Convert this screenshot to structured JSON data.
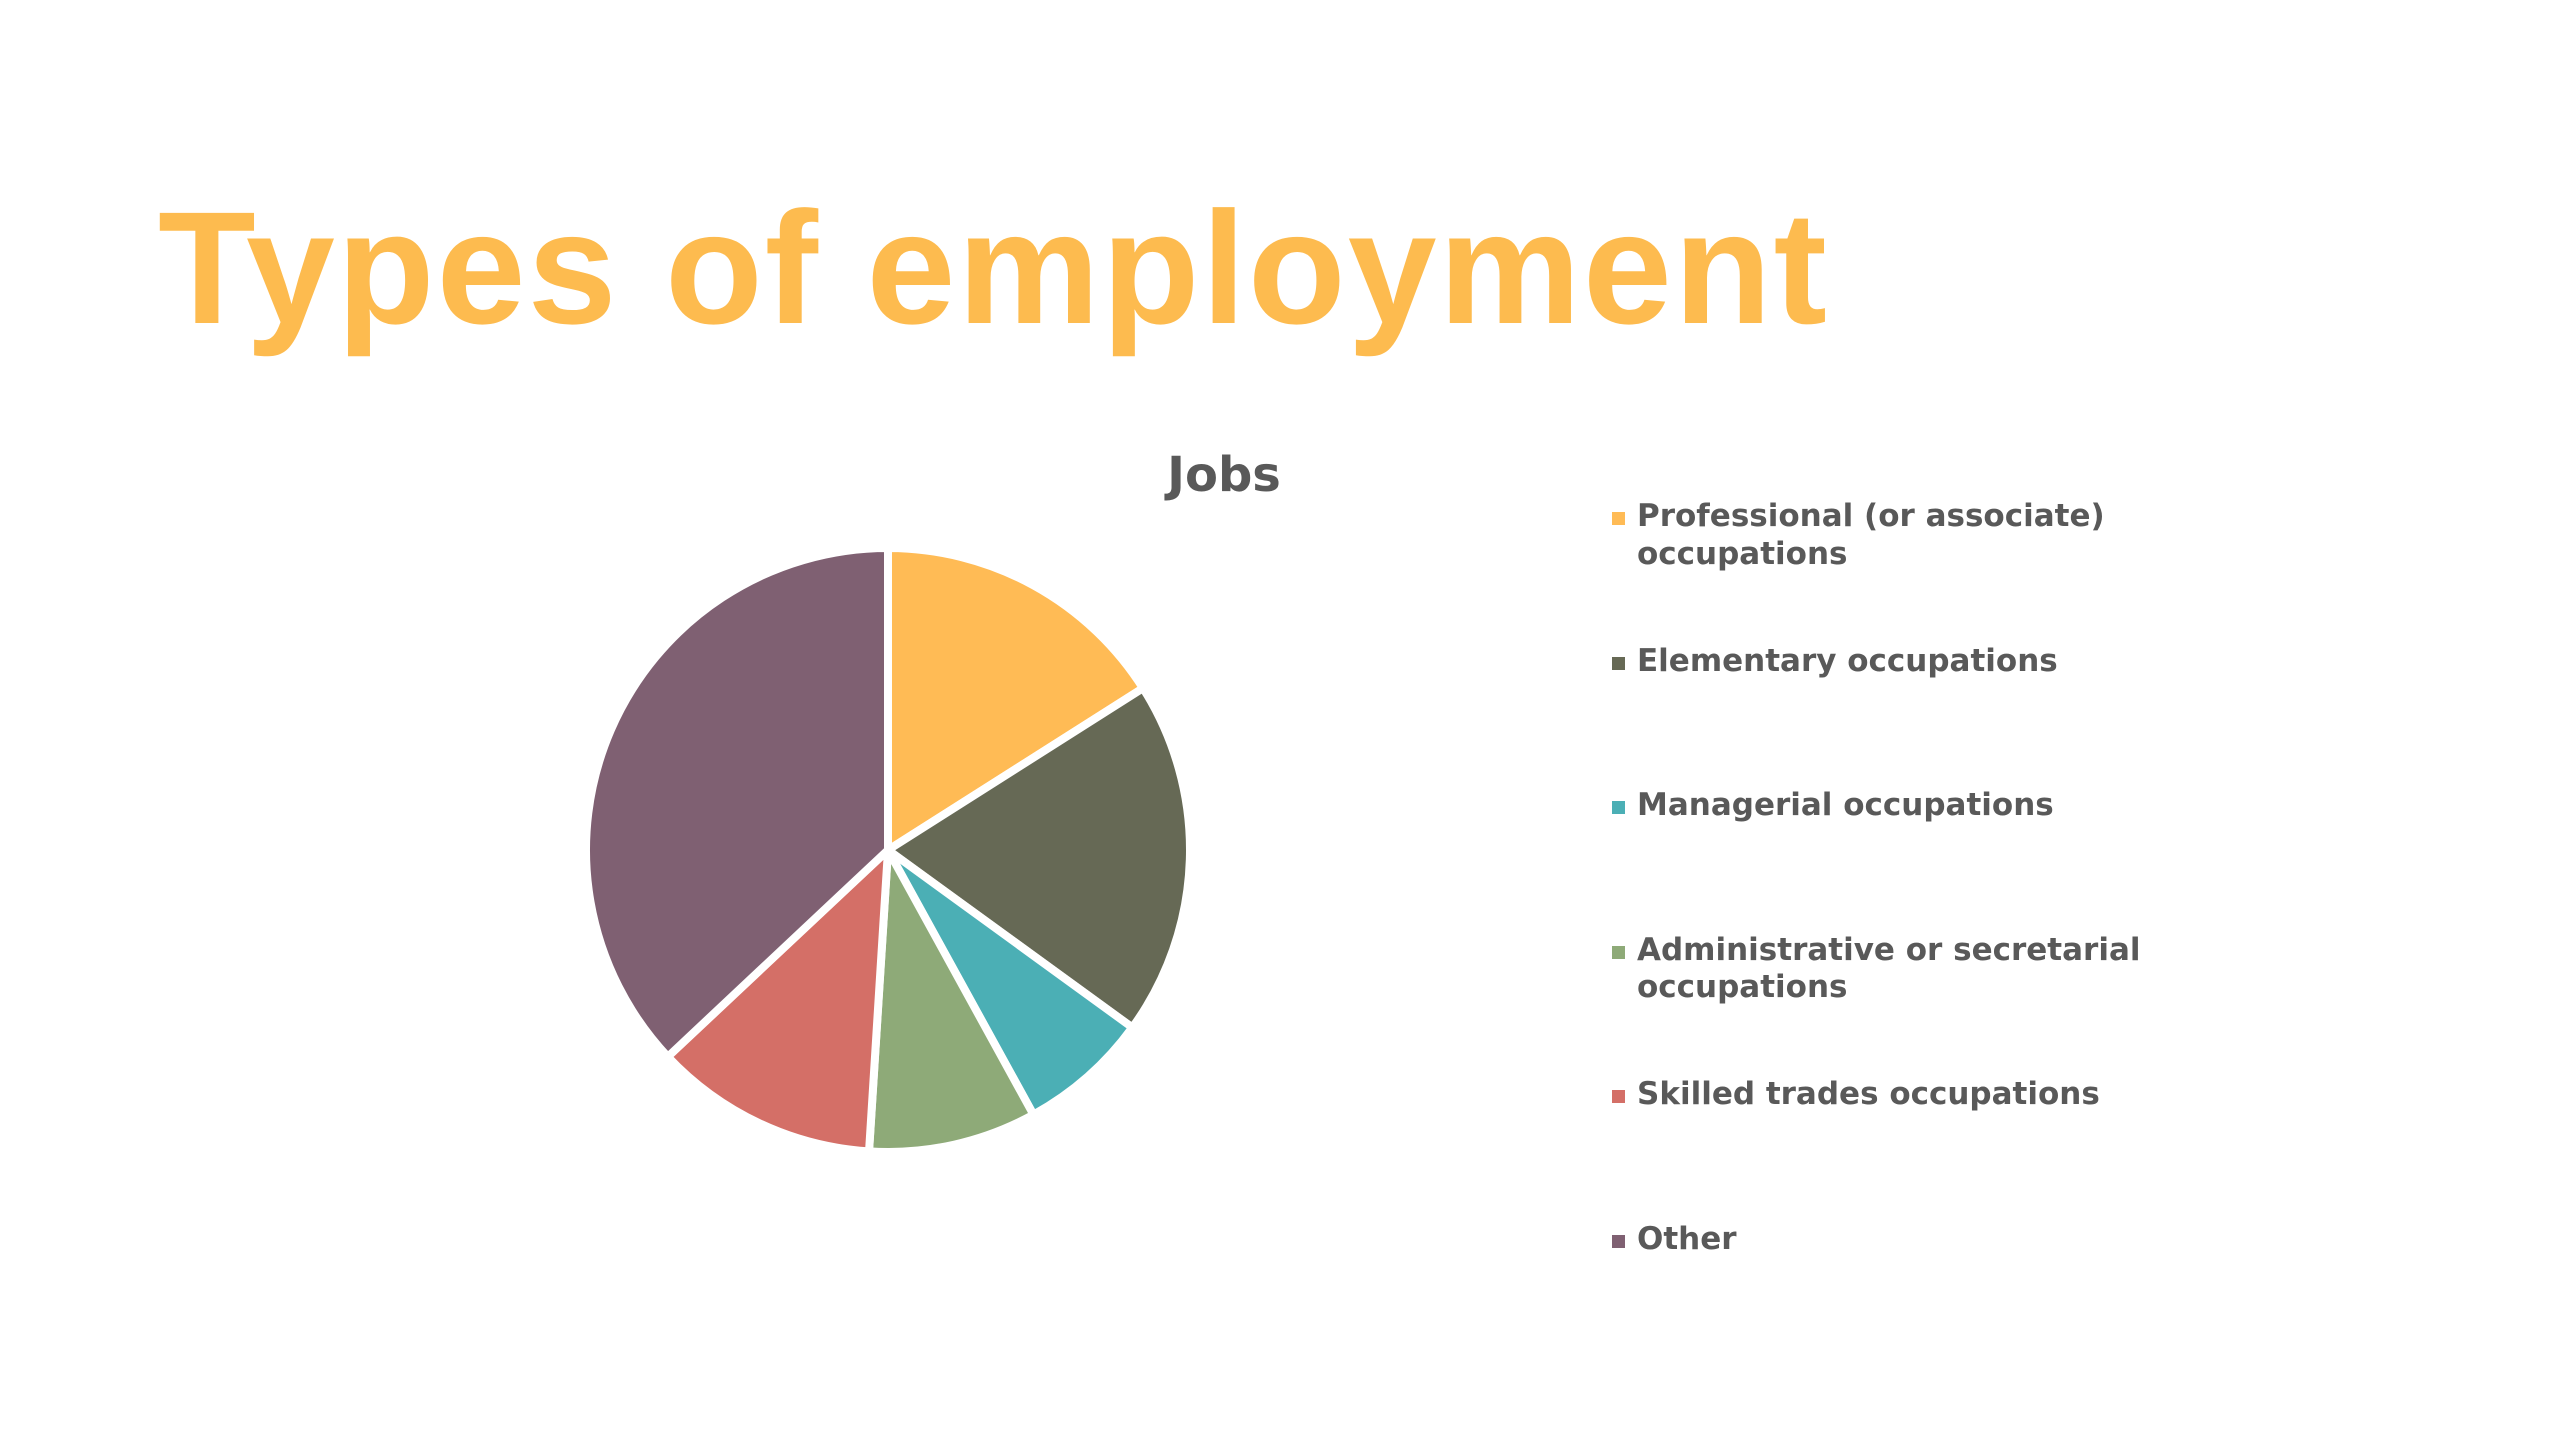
{
  "slide_title": "Types of employment",
  "chart_data": {
    "type": "pie",
    "title": "Jobs",
    "categories": [
      "Professional (or associate) occupations",
      "Elementary occupations",
      "Managerial occupations",
      "Administrative or secretarial occupations",
      "Skilled trades occupations",
      "Other"
    ],
    "values": [
      16,
      19,
      7,
      9,
      12,
      37
    ],
    "colors": [
      "#ffbb55",
      "#666955",
      "#4bafb5",
      "#8eaa78",
      "#d46f67",
      "#7f6072"
    ],
    "legend": "right"
  }
}
